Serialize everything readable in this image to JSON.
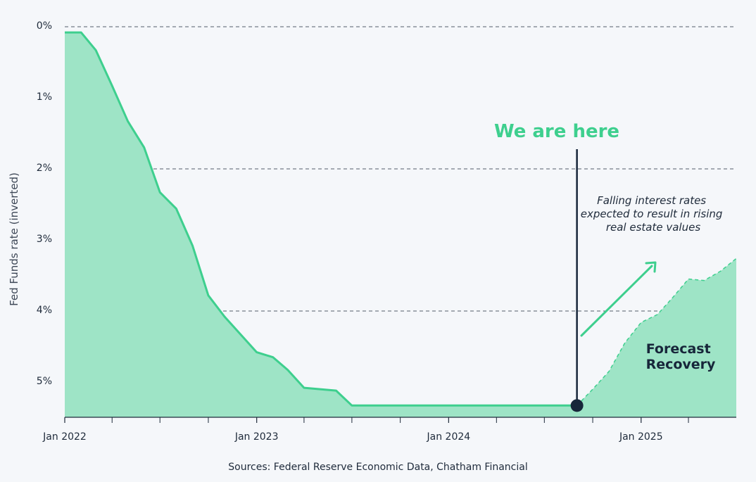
{
  "chart_data": {
    "type": "area",
    "ylabel": "Fed Funds rate (inverted)",
    "y_inverted": true,
    "ylim": [
      0,
      5.5
    ],
    "yticks": [
      0,
      1,
      2,
      3,
      4,
      5
    ],
    "ytick_labels": [
      "0%",
      "1%",
      "2%",
      "3%",
      "4%",
      "5%"
    ],
    "xlim": [
      "2022-01-01",
      "2025-07-01"
    ],
    "xtick_labels": [
      {
        "date": "2022-01-01",
        "label": "Jan 2022"
      },
      {
        "date": "2023-01-01",
        "label": "Jan 2023"
      },
      {
        "date": "2024-01-01",
        "label": "Jan 2024"
      },
      {
        "date": "2025-01-01",
        "label": "Jan 2025"
      }
    ],
    "minor_ticks": [
      "2022-04-01",
      "2022-07-01",
      "2022-10-01",
      "2023-04-01",
      "2023-07-01",
      "2023-10-01",
      "2024-04-01",
      "2024-07-01",
      "2024-10-01",
      "2025-04-01"
    ],
    "gridlines": [
      0,
      2,
      4
    ],
    "series": [
      {
        "style": "solid",
        "points": [
          [
            "2022-01-01",
            0.08
          ],
          [
            "2022-02-01",
            0.08
          ],
          [
            "2022-03-01",
            0.33
          ],
          [
            "2022-04-01",
            0.83
          ],
          [
            "2022-05-01",
            1.33
          ],
          [
            "2022-06-01",
            1.7
          ],
          [
            "2022-07-01",
            2.33
          ],
          [
            "2022-08-01",
            2.56
          ],
          [
            "2022-09-01",
            3.08
          ],
          [
            "2022-10-01",
            3.78
          ],
          [
            "2022-11-01",
            4.08
          ],
          [
            "2023-01-01",
            4.58
          ],
          [
            "2023-02-01",
            4.65
          ],
          [
            "2023-03-01",
            4.83
          ],
          [
            "2023-04-01",
            5.08
          ],
          [
            "2023-06-01",
            5.12
          ],
          [
            "2023-07-01",
            5.33
          ],
          [
            "2024-09-01",
            5.33
          ]
        ]
      },
      {
        "style": "dashed",
        "name": "Forecast Recovery",
        "points": [
          [
            "2024-09-01",
            5.33
          ],
          [
            "2024-10-01",
            5.1
          ],
          [
            "2024-11-01",
            4.85
          ],
          [
            "2024-12-01",
            4.45
          ],
          [
            "2025-01-01",
            4.16
          ],
          [
            "2025-02-01",
            4.05
          ],
          [
            "2025-03-01",
            3.82
          ],
          [
            "2025-04-01",
            3.55
          ],
          [
            "2025-05-01",
            3.57
          ],
          [
            "2025-06-01",
            3.44
          ],
          [
            "2025-07-01",
            3.26
          ]
        ]
      }
    ],
    "colors": {
      "line": "#3ecf8e",
      "fill": "#9ee4c6",
      "marker": "#17263a",
      "grid": "#1e2a3a"
    },
    "annotations": {
      "here_label": "We are here",
      "here_date": "2024-09-01",
      "note_lines": [
        "Falling interest rates",
        "expected to result in rising",
        "real estate values"
      ],
      "forecast_lines": [
        "Forecast",
        "Recovery"
      ]
    },
    "source": "Sources: Federal Reserve Economic Data, Chatham Financial"
  }
}
